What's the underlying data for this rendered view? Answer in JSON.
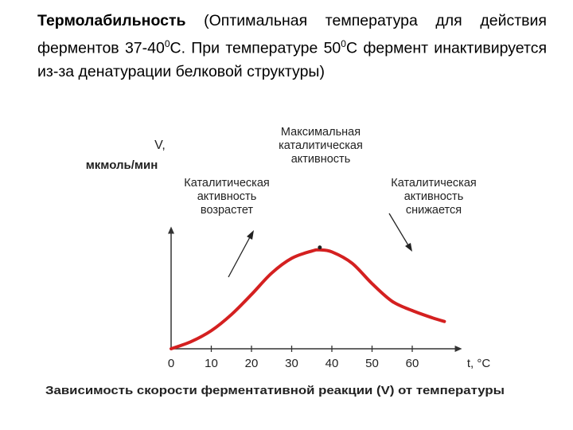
{
  "text": {
    "term": "Термолабильность",
    "body_1": " (Оптимальная температура для действия ферментов 37-40",
    "sup_1": "0",
    "body_2": "С. При температуре 50",
    "sup_2": "0",
    "body_3": "С фермент инактивируется из-за денатурации белковой структуры)"
  },
  "chart_data": {
    "type": "line",
    "x": [
      0,
      5,
      10,
      15,
      20,
      25,
      30,
      35,
      37,
      40,
      45,
      50,
      55,
      60,
      65,
      68
    ],
    "y": [
      0,
      1.8,
      4.5,
      8.5,
      13.5,
      18.8,
      22.5,
      24.3,
      24.6,
      24.1,
      21.3,
      16.2,
      11.8,
      9.5,
      7.7,
      6.8
    ],
    "xlabel": "t, °C",
    "ylabel_1": "V,",
    "ylabel_2": "мкмоль/мин",
    "x_ticks": [
      "0",
      "10",
      "20",
      "30",
      "40",
      "50",
      "60"
    ],
    "x_tick_values": [
      0,
      10,
      20,
      30,
      40,
      50,
      60
    ],
    "xlim": [
      0,
      71
    ],
    "ylim": [
      0,
      29
    ],
    "line_color": "#d42020",
    "peak": {
      "x": 37,
      "y": 24.6
    },
    "annotations": {
      "peak_lines": [
        "Максимальная",
        "каталитическая",
        "активность"
      ],
      "rise_lines": [
        "Каталитическая",
        "активность",
        "возрастет"
      ],
      "fall_lines": [
        "Каталитическая",
        "активность",
        "снижается"
      ]
    },
    "caption": "Зависимость скорости ферментативной реакции (V) от температуры"
  }
}
